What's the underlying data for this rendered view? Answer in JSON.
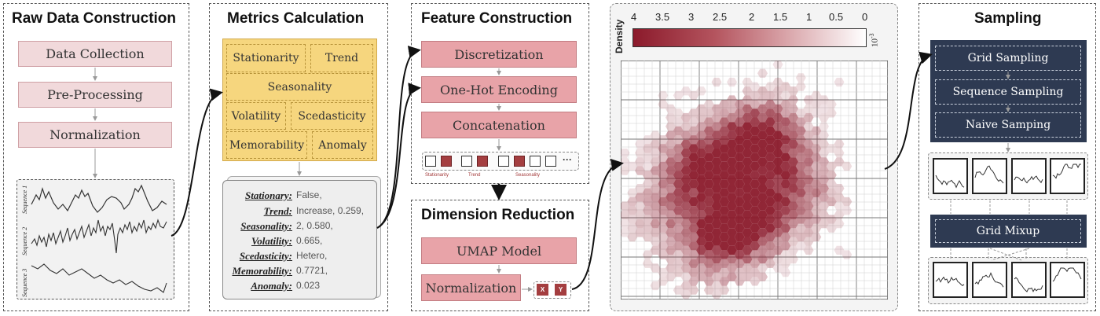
{
  "raw": {
    "title": "Raw Data Construction",
    "steps": [
      "Data Collection",
      "Pre-Processing",
      "Normalization"
    ],
    "sequences": [
      "Sequence 1",
      "Sequence 2",
      "Sequence 3"
    ]
  },
  "metrics": {
    "title": "Metrics Calculation",
    "cells": [
      "Stationarity",
      "Trend",
      "Seasonality",
      "Volatility",
      "Scedasticity",
      "Memorability",
      "Anomaly"
    ],
    "values": [
      {
        "key": "Stationary:",
        "value": "False,"
      },
      {
        "key": "Trend:",
        "value": "Increase, 0.259,"
      },
      {
        "key": "Seasonality:",
        "value": "2, 0.580,"
      },
      {
        "key": "Volatility:",
        "value": "0.665,"
      },
      {
        "key": "Scedasticity:",
        "value": "Hetero,"
      },
      {
        "key": "Memorability:",
        "value": "0.7721,"
      },
      {
        "key": "Anomaly:",
        "value": "0.023"
      }
    ]
  },
  "feature": {
    "title": "Feature Construction",
    "steps": [
      "Discretization",
      "One-Hot Encoding",
      "Concatenation"
    ],
    "ellipsis": "···",
    "group_labels": [
      "Stationarity",
      "Trend",
      "Seasonality"
    ]
  },
  "dimred": {
    "title": "Dimension Reduction",
    "steps": [
      "UMAP Model",
      "Normalization"
    ],
    "x_label": "X",
    "y_label": "Y"
  },
  "density": {
    "colorbar_label": "Density",
    "ticks": [
      "4",
      "3.5",
      "3",
      "2.5",
      "2",
      "1.5",
      "1",
      "0.5",
      "0"
    ],
    "scale_base": "10",
    "scale_exp": "-3",
    "colors": {
      "high": "#8b1a2b",
      "low": "#ffffff"
    }
  },
  "sampling": {
    "title": "Sampling",
    "methods": [
      "Grid Sampling",
      "Sequence Sampling",
      "Naive Samping"
    ],
    "mixup": "Grid Mixup"
  }
}
